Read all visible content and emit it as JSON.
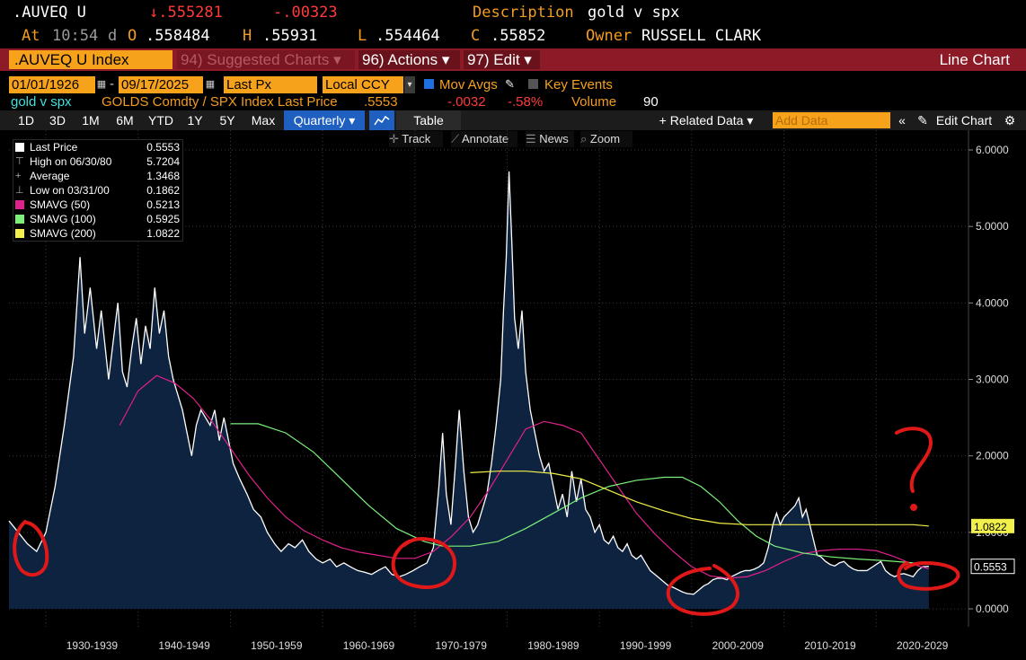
{
  "quote": {
    "ticker": ".AUVEQ U",
    "last": "↓.555281",
    "change": "-.00323",
    "description_label": "Description",
    "description": "gold v spx",
    "at_label": "At",
    "time": "10:54",
    "d_label": "d",
    "o_label": "O",
    "open": ".558484",
    "h_label": "H",
    "high": ".55931",
    "l_label": "L",
    "low": ".554464",
    "c_label": "C",
    "close": ".55852",
    "owner_label": "Owner",
    "owner": "RUSSELL CLARK"
  },
  "bar": {
    "security": ".AUVEQ U Index",
    "menu1": "94) Suggested Charts ▾",
    "menu2": "96) Actions ▾",
    "menu3": "97) Edit ▾",
    "chart_type": "Line Chart"
  },
  "controls": {
    "start_date": "01/01/1926",
    "dash": "-",
    "end_date": "09/17/2025",
    "field": "Last Px",
    "currency": "Local CCY",
    "mov_avgs": "Mov Avgs",
    "key_events": "Key Events",
    "desc": "gold v spx",
    "formula": "GOLDS Comdty / SPX Index Last Price",
    "last": ".5553",
    "chg": "-.0032",
    "pct": "-.58%",
    "volume_label": "Volume",
    "volume": "90"
  },
  "toolbar": {
    "ranges": [
      "1D",
      "3D",
      "1M",
      "6M",
      "YTD",
      "1Y",
      "5Y",
      "Max"
    ],
    "period": "Quarterly ▾",
    "table": "Table",
    "related": "+ Related Data ▾",
    "add_data_placeholder": "Add Data",
    "edit_chart": "Edit Chart"
  },
  "subtools": {
    "track": "Track",
    "annotate": "Annotate",
    "news": "News",
    "zoom": "Zoom"
  },
  "colors": {
    "price": "#ffffff",
    "sma50": "#e0208c",
    "sma100": "#7cf07a",
    "sma200": "#f2f04a",
    "area": "#0d2340",
    "markup": "#e01818"
  },
  "chart_data": {
    "type": "area",
    "title": "",
    "ylim": [
      0,
      6
    ],
    "y_ticks": [
      "6.0000",
      "5.0000",
      "4.0000",
      "3.0000",
      "2.0000",
      "1.0000",
      "0.0000"
    ],
    "x_labels": [
      "1930-1939",
      "1940-1949",
      "1950-1959",
      "1960-1969",
      "1970-1979",
      "1980-1989",
      "1990-1999",
      "2000-2009",
      "2010-2019",
      "2020-2029"
    ],
    "legend": [
      {
        "name": "Last Price",
        "value": "0.5553"
      },
      {
        "name": "High on 06/30/80",
        "value": "5.7204"
      },
      {
        "name": "Average",
        "value": "1.3468"
      },
      {
        "name": "Low on 03/31/00",
        "value": "0.1862"
      },
      {
        "name": "SMAVG (50)",
        "value": "0.5213"
      },
      {
        "name": "SMAVG (100)",
        "value": "0.5925"
      },
      {
        "name": "SMAVG (200)",
        "value": "1.0822"
      }
    ],
    "last_labels": {
      "sma200": "1.0822",
      "price": "0.5553"
    },
    "series": [
      {
        "name": "Last Price",
        "points": [
          [
            1926,
            1.15
          ],
          [
            1927,
            1.0
          ],
          [
            1928,
            0.85
          ],
          [
            1929,
            0.75
          ],
          [
            1930,
            1.0
          ],
          [
            1931,
            1.6
          ],
          [
            1932,
            2.4
          ],
          [
            1933,
            3.3
          ],
          [
            1933.7,
            4.6
          ],
          [
            1934.2,
            3.6
          ],
          [
            1934.8,
            4.2
          ],
          [
            1935.5,
            3.4
          ],
          [
            1936,
            3.9
          ],
          [
            1936.8,
            3.0
          ],
          [
            1937.3,
            3.5
          ],
          [
            1937.8,
            4.0
          ],
          [
            1938.3,
            3.1
          ],
          [
            1938.8,
            2.9
          ],
          [
            1939.3,
            3.4
          ],
          [
            1939.8,
            3.8
          ],
          [
            1940.3,
            3.2
          ],
          [
            1940.8,
            3.7
          ],
          [
            1941.3,
            3.4
          ],
          [
            1941.8,
            4.2
          ],
          [
            1942.3,
            3.6
          ],
          [
            1942.8,
            3.9
          ],
          [
            1943.3,
            3.3
          ],
          [
            1943.8,
            3.0
          ],
          [
            1944.3,
            2.8
          ],
          [
            1944.8,
            2.6
          ],
          [
            1945.3,
            2.3
          ],
          [
            1945.8,
            2.0
          ],
          [
            1946.3,
            2.4
          ],
          [
            1946.8,
            2.6
          ],
          [
            1947.3,
            2.5
          ],
          [
            1947.8,
            2.4
          ],
          [
            1948.3,
            2.6
          ],
          [
            1948.8,
            2.2
          ],
          [
            1949.3,
            2.5
          ],
          [
            1949.8,
            2.2
          ],
          [
            1950.3,
            1.9
          ],
          [
            1951,
            1.7
          ],
          [
            1951.8,
            1.5
          ],
          [
            1952.5,
            1.3
          ],
          [
            1953.3,
            1.2
          ],
          [
            1954,
            1.0
          ],
          [
            1954.8,
            0.85
          ],
          [
            1955.5,
            0.75
          ],
          [
            1956.3,
            0.85
          ],
          [
            1957,
            0.8
          ],
          [
            1957.8,
            0.9
          ],
          [
            1958.5,
            0.75
          ],
          [
            1959.3,
            0.65
          ],
          [
            1960,
            0.6
          ],
          [
            1960.8,
            0.65
          ],
          [
            1961.5,
            0.55
          ],
          [
            1962.3,
            0.6
          ],
          [
            1963,
            0.55
          ],
          [
            1963.8,
            0.5
          ],
          [
            1964.5,
            0.48
          ],
          [
            1965.3,
            0.45
          ],
          [
            1966,
            0.5
          ],
          [
            1966.8,
            0.55
          ],
          [
            1967.5,
            0.45
          ],
          [
            1968.3,
            0.42
          ],
          [
            1969,
            0.45
          ],
          [
            1969.8,
            0.5
          ],
          [
            1970.5,
            0.55
          ],
          [
            1971.3,
            0.6
          ],
          [
            1972,
            0.8
          ],
          [
            1972.6,
            1.6
          ],
          [
            1973,
            2.3
          ],
          [
            1973.4,
            1.5
          ],
          [
            1973.9,
            1.1
          ],
          [
            1974.4,
            1.9
          ],
          [
            1974.8,
            2.6
          ],
          [
            1975.3,
            1.8
          ],
          [
            1975.8,
            1.2
          ],
          [
            1976.3,
            1.0
          ],
          [
            1976.8,
            1.1
          ],
          [
            1977.3,
            1.3
          ],
          [
            1977.8,
            1.5
          ],
          [
            1978.3,
            1.9
          ],
          [
            1978.8,
            2.4
          ],
          [
            1979.3,
            3.0
          ],
          [
            1979.6,
            3.9
          ],
          [
            1979.9,
            4.6
          ],
          [
            1980.2,
            5.72
          ],
          [
            1980.5,
            4.8
          ],
          [
            1980.8,
            3.8
          ],
          [
            1981.2,
            3.4
          ],
          [
            1981.6,
            3.9
          ],
          [
            1982,
            3.1
          ],
          [
            1982.5,
            2.6
          ],
          [
            1983,
            2.3
          ],
          [
            1983.5,
            2.0
          ],
          [
            1984,
            1.8
          ],
          [
            1984.5,
            1.9
          ],
          [
            1985,
            1.6
          ],
          [
            1985.5,
            1.3
          ],
          [
            1986,
            1.5
          ],
          [
            1986.5,
            1.2
          ],
          [
            1987,
            1.8
          ],
          [
            1987.5,
            1.4
          ],
          [
            1988,
            1.7
          ],
          [
            1988.5,
            1.3
          ],
          [
            1989,
            1.2
          ],
          [
            1989.5,
            1.0
          ],
          [
            1990,
            1.1
          ],
          [
            1990.5,
            0.9
          ],
          [
            1991,
            0.85
          ],
          [
            1991.5,
            0.95
          ],
          [
            1992,
            0.8
          ],
          [
            1992.5,
            0.75
          ],
          [
            1993,
            0.85
          ],
          [
            1993.5,
            0.7
          ],
          [
            1994,
            0.65
          ],
          [
            1994.5,
            0.7
          ],
          [
            1995,
            0.6
          ],
          [
            1995.5,
            0.5
          ],
          [
            1996,
            0.45
          ],
          [
            1996.5,
            0.4
          ],
          [
            1997,
            0.35
          ],
          [
            1997.5,
            0.3
          ],
          [
            1998,
            0.28
          ],
          [
            1998.5,
            0.25
          ],
          [
            1999,
            0.22
          ],
          [
            1999.5,
            0.2
          ],
          [
            2000.2,
            0.19
          ],
          [
            2000.8,
            0.25
          ],
          [
            2001.3,
            0.3
          ],
          [
            2001.8,
            0.33
          ],
          [
            2002.3,
            0.38
          ],
          [
            2002.8,
            0.4
          ],
          [
            2003.3,
            0.4
          ],
          [
            2003.8,
            0.38
          ],
          [
            2004.3,
            0.42
          ],
          [
            2004.8,
            0.45
          ],
          [
            2005.3,
            0.48
          ],
          [
            2005.8,
            0.5
          ],
          [
            2006.3,
            0.5
          ],
          [
            2006.8,
            0.52
          ],
          [
            2007.3,
            0.55
          ],
          [
            2007.8,
            0.6
          ],
          [
            2008.3,
            0.8
          ],
          [
            2008.8,
            1.1
          ],
          [
            2009.2,
            1.25
          ],
          [
            2009.6,
            1.1
          ],
          [
            2010,
            1.2
          ],
          [
            2010.4,
            1.25
          ],
          [
            2010.8,
            1.3
          ],
          [
            2011.2,
            1.35
          ],
          [
            2011.6,
            1.45
          ],
          [
            2012,
            1.2
          ],
          [
            2012.4,
            1.3
          ],
          [
            2012.8,
            1.1
          ],
          [
            2013.2,
            0.9
          ],
          [
            2013.6,
            0.7
          ],
          [
            2014,
            0.68
          ],
          [
            2014.5,
            0.62
          ],
          [
            2015,
            0.58
          ],
          [
            2015.5,
            0.56
          ],
          [
            2016,
            0.6
          ],
          [
            2016.5,
            0.62
          ],
          [
            2017,
            0.56
          ],
          [
            2017.5,
            0.52
          ],
          [
            2018,
            0.5
          ],
          [
            2018.5,
            0.5
          ],
          [
            2019,
            0.5
          ],
          [
            2019.5,
            0.54
          ],
          [
            2020,
            0.58
          ],
          [
            2020.5,
            0.62
          ],
          [
            2021,
            0.5
          ],
          [
            2021.5,
            0.45
          ],
          [
            2022,
            0.42
          ],
          [
            2022.5,
            0.45
          ],
          [
            2023,
            0.46
          ],
          [
            2023.5,
            0.44
          ],
          [
            2024,
            0.42
          ],
          [
            2024.5,
            0.5
          ],
          [
            2025,
            0.55
          ],
          [
            2025.7,
            0.5553
          ]
        ]
      },
      {
        "name": "SMAVG (50)",
        "points": [
          [
            1938,
            2.4
          ],
          [
            1940,
            2.85
          ],
          [
            1942,
            3.05
          ],
          [
            1944,
            2.95
          ],
          [
            1946,
            2.75
          ],
          [
            1948,
            2.45
          ],
          [
            1950,
            2.1
          ],
          [
            1952,
            1.75
          ],
          [
            1954,
            1.45
          ],
          [
            1956,
            1.2
          ],
          [
            1958,
            1.02
          ],
          [
            1960,
            0.9
          ],
          [
            1962,
            0.8
          ],
          [
            1964,
            0.74
          ],
          [
            1966,
            0.7
          ],
          [
            1968,
            0.66
          ],
          [
            1970,
            0.66
          ],
          [
            1972,
            0.75
          ],
          [
            1974,
            0.95
          ],
          [
            1976,
            1.2
          ],
          [
            1978,
            1.55
          ],
          [
            1980,
            1.95
          ],
          [
            1982,
            2.35
          ],
          [
            1984,
            2.45
          ],
          [
            1986,
            2.4
          ],
          [
            1988,
            2.3
          ],
          [
            1990,
            1.95
          ],
          [
            1992,
            1.6
          ],
          [
            1994,
            1.25
          ],
          [
            1996,
            0.98
          ],
          [
            1998,
            0.75
          ],
          [
            2000,
            0.55
          ],
          [
            2002,
            0.43
          ],
          [
            2004,
            0.4
          ],
          [
            2006,
            0.42
          ],
          [
            2008,
            0.5
          ],
          [
            2010,
            0.62
          ],
          [
            2012,
            0.72
          ],
          [
            2014,
            0.76
          ],
          [
            2016,
            0.78
          ],
          [
            2018,
            0.78
          ],
          [
            2020,
            0.76
          ],
          [
            2022,
            0.68
          ],
          [
            2024,
            0.58
          ],
          [
            2025.7,
            0.5213
          ]
        ]
      },
      {
        "name": "SMAVG (100)",
        "points": [
          [
            1950,
            2.42
          ],
          [
            1953,
            2.42
          ],
          [
            1956,
            2.3
          ],
          [
            1959,
            2.05
          ],
          [
            1962,
            1.7
          ],
          [
            1965,
            1.35
          ],
          [
            1968,
            1.05
          ],
          [
            1971,
            0.88
          ],
          [
            1973,
            0.82
          ],
          [
            1976,
            0.82
          ],
          [
            1979,
            0.88
          ],
          [
            1982,
            1.05
          ],
          [
            1985,
            1.25
          ],
          [
            1988,
            1.45
          ],
          [
            1991,
            1.6
          ],
          [
            1994,
            1.68
          ],
          [
            1997,
            1.72
          ],
          [
            1999,
            1.72
          ],
          [
            2001,
            1.6
          ],
          [
            2003,
            1.4
          ],
          [
            2005,
            1.15
          ],
          [
            2007,
            0.95
          ],
          [
            2009,
            0.82
          ],
          [
            2012,
            0.73
          ],
          [
            2015,
            0.68
          ],
          [
            2018,
            0.65
          ],
          [
            2021,
            0.63
          ],
          [
            2024,
            0.6
          ],
          [
            2025.7,
            0.5925
          ]
        ]
      },
      {
        "name": "SMAVG (200)",
        "points": [
          [
            1976,
            1.78
          ],
          [
            1979,
            1.8
          ],
          [
            1982,
            1.8
          ],
          [
            1985,
            1.77
          ],
          [
            1988,
            1.7
          ],
          [
            1991,
            1.55
          ],
          [
            1994,
            1.4
          ],
          [
            1997,
            1.28
          ],
          [
            2000,
            1.18
          ],
          [
            2003,
            1.12
          ],
          [
            2006,
            1.1
          ],
          [
            2009,
            1.1
          ],
          [
            2012,
            1.1
          ],
          [
            2015,
            1.1
          ],
          [
            2018,
            1.1
          ],
          [
            2021,
            1.1
          ],
          [
            2024,
            1.1
          ],
          [
            2025.7,
            1.0822
          ]
        ]
      }
    ]
  }
}
